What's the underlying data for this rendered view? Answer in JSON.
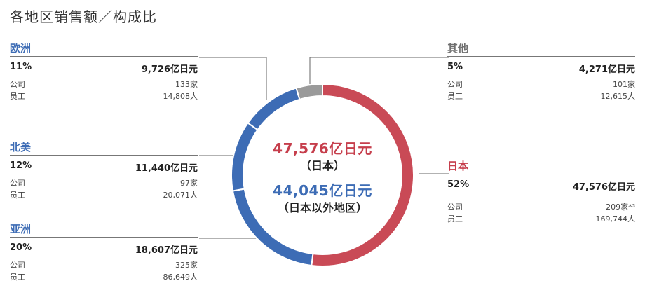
{
  "title": "各地区销售额／构成比",
  "chart_data": {
    "type": "pie",
    "style": "donut",
    "categories": [
      "日本",
      "亚洲",
      "北美",
      "欧洲",
      "其他"
    ],
    "values": [
      47576,
      18607,
      11440,
      9726,
      4271
    ],
    "percent": [
      52,
      20,
      12,
      11,
      5
    ],
    "colors": [
      "#c94a56",
      "#3d6cb5",
      "#3d6cb5",
      "#3d6cb5",
      "#9a9a9a"
    ],
    "unit": "亿日元"
  },
  "center": {
    "japan_amount": "47,576亿日元",
    "japan_label": "（日本）",
    "overseas_amount": "44,045亿日元",
    "overseas_label": "（日本以外地区）"
  },
  "regions": {
    "europe": {
      "name": "欧洲",
      "pct": "11%",
      "amount": "9,726亿日元",
      "company_label": "公司",
      "company_value": "133家",
      "staff_label": "员工",
      "staff_value": "14,808人"
    },
    "na": {
      "name": "北美",
      "pct": "12%",
      "amount": "11,440亿日元",
      "company_label": "公司",
      "company_value": "97家",
      "staff_label": "员工",
      "staff_value": "20,071人"
    },
    "asia": {
      "name": "亚洲",
      "pct": "20%",
      "amount": "18,607亿日元",
      "company_label": "公司",
      "company_value": "325家",
      "staff_label": "员工",
      "staff_value": "86,649人"
    },
    "other": {
      "name": "其他",
      "pct": "5%",
      "amount": "4,271亿日元",
      "company_label": "公司",
      "company_value": "101家",
      "staff_label": "员工",
      "staff_value": "12,615人"
    },
    "japan": {
      "name": "日本",
      "pct": "52%",
      "amount": "47,576亿日元",
      "company_label": "公司",
      "company_value": "209家*³",
      "staff_label": "员工",
      "staff_value": "169,744人"
    }
  }
}
